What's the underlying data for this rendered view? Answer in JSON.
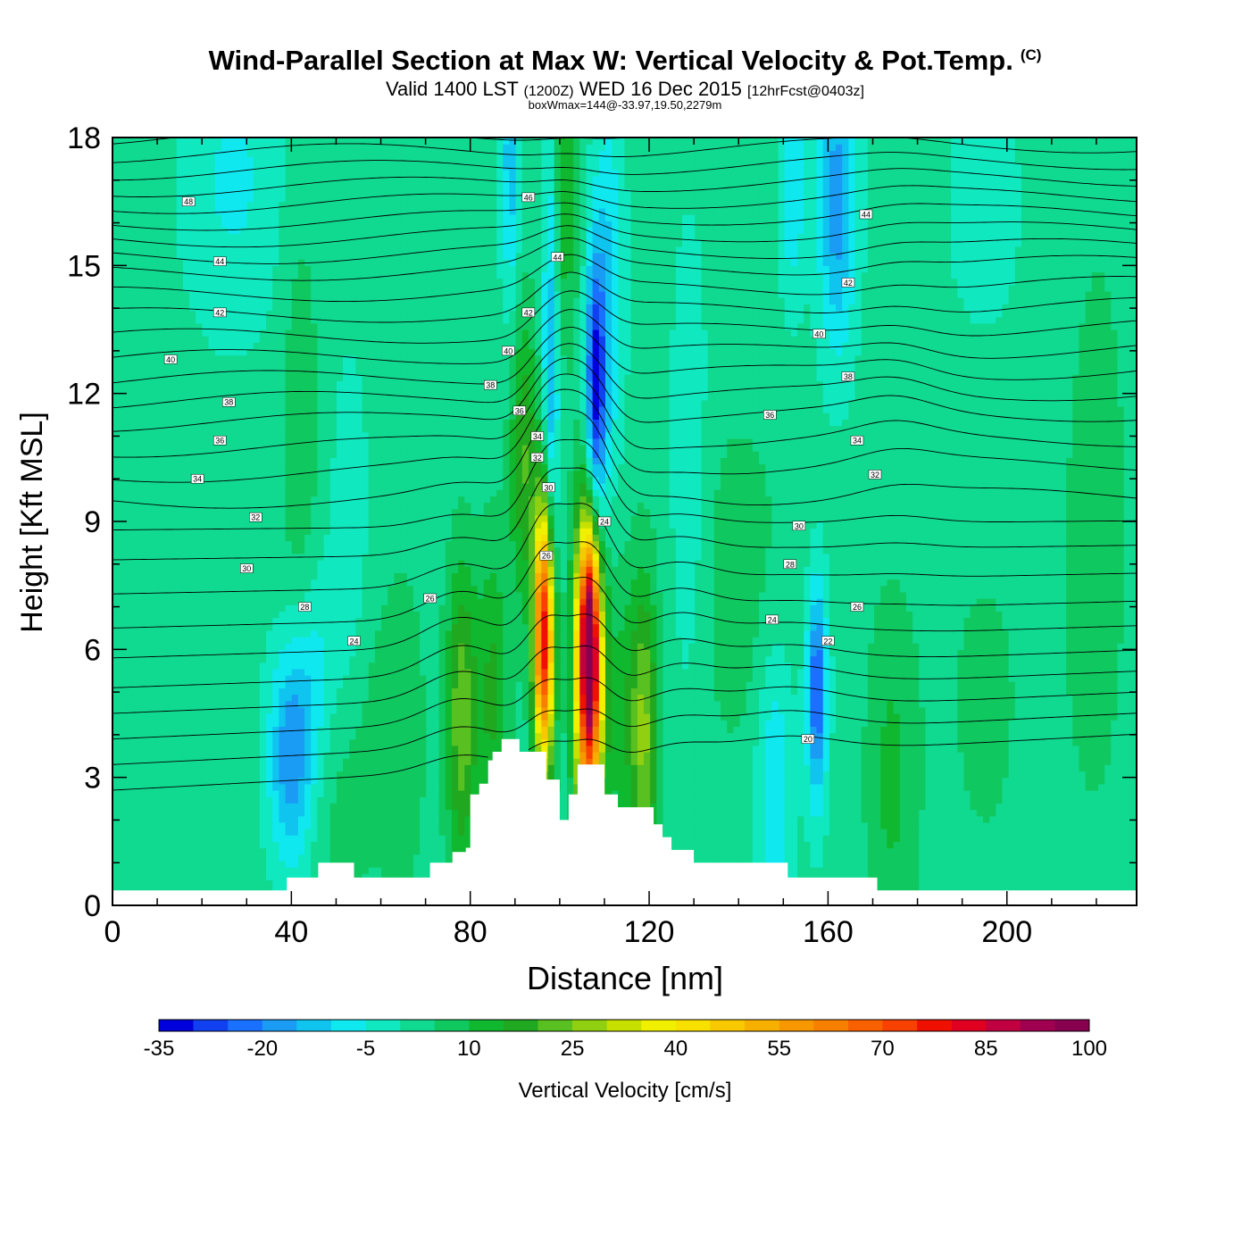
{
  "header": {
    "title": "Wind-Parallel Section at Max W: Vertical Velocity & Pot.Temp.",
    "title_mark": "(C)",
    "valid_prefix": "Valid 1400 LST",
    "valid_z": "(1200Z)",
    "valid_date": "WED 16 Dec 2015",
    "forecast": "[12hrFcst@0403z]",
    "boxwmax": "boxWmax=144@-33.97,19.50,2279m"
  },
  "chart_data": {
    "type": "heatmap",
    "xlabel": "Distance [nm]",
    "ylabel": "Height [Kft MSL]",
    "xlim": [
      0,
      229
    ],
    "ylim": [
      0,
      18
    ],
    "x_ticks": [
      0,
      40,
      80,
      120,
      160,
      200
    ],
    "y_ticks": [
      0,
      3,
      6,
      9,
      12,
      15,
      18
    ],
    "colorbar": {
      "label": "Vertical Velocity [cm/s]",
      "tick_labels": [
        -35,
        -20,
        -5,
        10,
        25,
        40,
        55,
        70,
        85,
        100
      ],
      "levels": [
        -35,
        -30,
        -25,
        -20,
        -15,
        -10,
        -5,
        0,
        5,
        10,
        15,
        20,
        25,
        30,
        35,
        40,
        45,
        50,
        55,
        60,
        65,
        70,
        75,
        80,
        85,
        90,
        95,
        100
      ],
      "colors": [
        "#0000dd",
        "#1040f0",
        "#1a70ff",
        "#1a9cf5",
        "#10c4f0",
        "#10e8f0",
        "#10e8c0",
        "#10d990",
        "#10c860",
        "#10b830",
        "#20a820",
        "#58c020",
        "#90d010",
        "#c8e000",
        "#f0f000",
        "#f8e000",
        "#f8c800",
        "#f8b000",
        "#f89800",
        "#f88000",
        "#f86000",
        "#f84000",
        "#f01000",
        "#e00020",
        "#c00040",
        "#a00050",
        "#880050"
      ]
    },
    "background_value": 2,
    "velocity_features": [
      {
        "x": 96.5,
        "y": 6.3,
        "sx": 1.6,
        "sy": 2.2,
        "w": 80
      },
      {
        "x": 106.5,
        "y": 5.6,
        "sx": 2.1,
        "sy": 2.6,
        "w": 92
      },
      {
        "x": 106.7,
        "y": 6.3,
        "sx": 1.0,
        "sy": 1.2,
        "w": 30
      },
      {
        "x": 78,
        "y": 4.4,
        "sx": 2.4,
        "sy": 2.6,
        "w": 22
      },
      {
        "x": 85,
        "y": 5.0,
        "sx": 2.6,
        "sy": 2.6,
        "w": 14
      },
      {
        "x": 119,
        "y": 4.0,
        "sx": 2.2,
        "sy": 2.6,
        "w": 22
      },
      {
        "x": 114,
        "y": 4.5,
        "sx": 3.0,
        "sy": 2.5,
        "w": 10
      },
      {
        "x": 92,
        "y": 10.5,
        "sx": 2.2,
        "sy": 2.5,
        "w": 18
      },
      {
        "x": 101,
        "y": 16.5,
        "sx": 2.2,
        "sy": 2.5,
        "w": 12
      },
      {
        "x": 51,
        "y": 4.0,
        "sx": 6,
        "sy": 3,
        "w": 8
      },
      {
        "x": 65,
        "y": 4.0,
        "sx": 4,
        "sy": 3,
        "w": 6
      },
      {
        "x": 174,
        "y": 3.0,
        "sx": 4,
        "sy": 3,
        "w": 9
      },
      {
        "x": 42,
        "y": 11.0,
        "sx": 3,
        "sy": 4,
        "w": 7
      },
      {
        "x": 140,
        "y": 7.5,
        "sx": 8,
        "sy": 3,
        "w": 6
      },
      {
        "x": 195,
        "y": 7.5,
        "sx": 10,
        "sy": 6,
        "w": 5
      },
      {
        "x": 220,
        "y": 9.0,
        "sx": 6,
        "sy": 6,
        "w": 5
      },
      {
        "x": 98,
        "y": 12.5,
        "sx": 1.3,
        "sy": 4.5,
        "w": -18
      },
      {
        "x": 108,
        "y": 11.8,
        "sx": 1.6,
        "sy": 2.4,
        "w": -35
      },
      {
        "x": 111,
        "y": 14.5,
        "sx": 2.4,
        "sy": 3.2,
        "w": -12
      },
      {
        "x": 89,
        "y": 17.5,
        "sx": 1.5,
        "sy": 2.5,
        "w": -15
      },
      {
        "x": 40,
        "y": 3.5,
        "sx": 3.5,
        "sy": 1.8,
        "w": -22
      },
      {
        "x": 46,
        "y": 5.5,
        "sx": 4,
        "sy": 2.0,
        "w": -12
      },
      {
        "x": 157.5,
        "y": 5.0,
        "sx": 1.6,
        "sy": 1.8,
        "w": -28
      },
      {
        "x": 148,
        "y": 3.0,
        "sx": 3,
        "sy": 2.5,
        "w": -12
      },
      {
        "x": 162,
        "y": 16.5,
        "sx": 3,
        "sy": 2.5,
        "w": -20
      },
      {
        "x": 152,
        "y": 17.0,
        "sx": 2,
        "sy": 2.0,
        "w": -12
      },
      {
        "x": 27,
        "y": 17.0,
        "sx": 8,
        "sy": 2.5,
        "w": -8
      },
      {
        "x": 53,
        "y": 8.0,
        "sx": 3,
        "sy": 3,
        "w": -8
      },
      {
        "x": 195,
        "y": 14.0,
        "sx": 10,
        "sy": 5,
        "w": -5
      },
      {
        "x": 129,
        "y": 10.0,
        "sx": 3,
        "sy": 4,
        "w": -7
      }
    ],
    "terrain": {
      "x": [
        0,
        39,
        39,
        46,
        46,
        54,
        54,
        71,
        71,
        76,
        76,
        79,
        79,
        80,
        80,
        82,
        82,
        84,
        84,
        85,
        85,
        87,
        87,
        91,
        91,
        97,
        97,
        100,
        100,
        102,
        102,
        104,
        104,
        110,
        110,
        113,
        113,
        121,
        121,
        123,
        123,
        125,
        125,
        130,
        130,
        151,
        151,
        171,
        171,
        229
      ],
      "y": [
        0.35,
        0.35,
        0.65,
        0.65,
        1.0,
        1.0,
        0.65,
        0.65,
        1.0,
        1.0,
        1.25,
        1.25,
        1.35,
        1.35,
        2.6,
        2.6,
        2.85,
        2.85,
        3.4,
        3.4,
        3.6,
        3.6,
        3.9,
        3.9,
        3.6,
        3.6,
        2.95,
        2.95,
        2.0,
        2.0,
        2.6,
        2.6,
        3.3,
        3.3,
        2.6,
        2.6,
        2.3,
        2.3,
        1.9,
        1.9,
        1.6,
        1.6,
        1.3,
        1.3,
        1.0,
        1.0,
        0.65,
        0.65,
        0.35,
        0.35
      ]
    },
    "theta": {
      "levels": [
        20,
        21,
        22,
        23,
        24,
        25,
        26,
        27,
        28,
        29,
        30,
        31,
        32,
        33,
        34,
        35,
        36,
        37,
        38,
        39,
        40,
        41,
        42,
        43,
        44,
        45,
        46,
        47,
        48
      ],
      "left_heights": [
        2.7,
        3.3,
        3.9,
        4.5,
        5.1,
        5.8,
        6.5,
        7.3,
        8.1,
        8.8,
        9.5,
        10.1,
        10.7,
        11.3,
        11.8,
        12.3,
        12.8,
        13.3,
        13.8,
        14.3,
        14.8,
        15.2,
        15.6,
        16.0,
        16.4,
        16.8,
        17.2,
        17.6,
        18.0
      ],
      "contour_labels": [
        {
          "text": "48",
          "x": 17,
          "y": 16.5
        },
        {
          "text": "44",
          "x": 24,
          "y": 15.1
        },
        {
          "text": "42",
          "x": 24,
          "y": 13.9
        },
        {
          "text": "40",
          "x": 13,
          "y": 12.8
        },
        {
          "text": "38",
          "x": 26,
          "y": 11.8
        },
        {
          "text": "36",
          "x": 24,
          "y": 10.9
        },
        {
          "text": "34",
          "x": 19,
          "y": 10.0
        },
        {
          "text": "32",
          "x": 32,
          "y": 9.1
        },
        {
          "text": "30",
          "x": 30,
          "y": 7.9
        },
        {
          "text": "28",
          "x": 43,
          "y": 7.0
        },
        {
          "text": "26",
          "x": 71,
          "y": 7.2
        },
        {
          "text": "24",
          "x": 54,
          "y": 6.2
        },
        {
          "text": "46",
          "x": 93,
          "y": 16.6
        },
        {
          "text": "44",
          "x": 99.5,
          "y": 15.2
        },
        {
          "text": "42",
          "x": 93,
          "y": 13.9
        },
        {
          "text": "40",
          "x": 88.5,
          "y": 13.0
        },
        {
          "text": "38",
          "x": 84.5,
          "y": 12.2
        },
        {
          "text": "36",
          "x": 91,
          "y": 11.6
        },
        {
          "text": "34",
          "x": 95,
          "y": 11.0
        },
        {
          "text": "32",
          "x": 95,
          "y": 10.5
        },
        {
          "text": "30",
          "x": 97.5,
          "y": 9.8
        },
        {
          "text": "26",
          "x": 97,
          "y": 8.2
        },
        {
          "text": "24",
          "x": 110,
          "y": 9.0
        },
        {
          "text": "44",
          "x": 168.5,
          "y": 16.2
        },
        {
          "text": "42",
          "x": 164.5,
          "y": 14.6
        },
        {
          "text": "40",
          "x": 158,
          "y": 13.4
        },
        {
          "text": "38",
          "x": 164.5,
          "y": 12.4
        },
        {
          "text": "36",
          "x": 147,
          "y": 11.5
        },
        {
          "text": "34",
          "x": 166.5,
          "y": 10.9
        },
        {
          "text": "32",
          "x": 170.5,
          "y": 10.1
        },
        {
          "text": "30",
          "x": 153.5,
          "y": 8.9
        },
        {
          "text": "28",
          "x": 151.5,
          "y": 8.0
        },
        {
          "text": "26",
          "x": 166.5,
          "y": 7.0
        },
        {
          "text": "24",
          "x": 147.5,
          "y": 6.7
        },
        {
          "text": "22",
          "x": 160,
          "y": 6.2
        },
        {
          "text": "20",
          "x": 155.5,
          "y": 3.9
        }
      ]
    }
  }
}
